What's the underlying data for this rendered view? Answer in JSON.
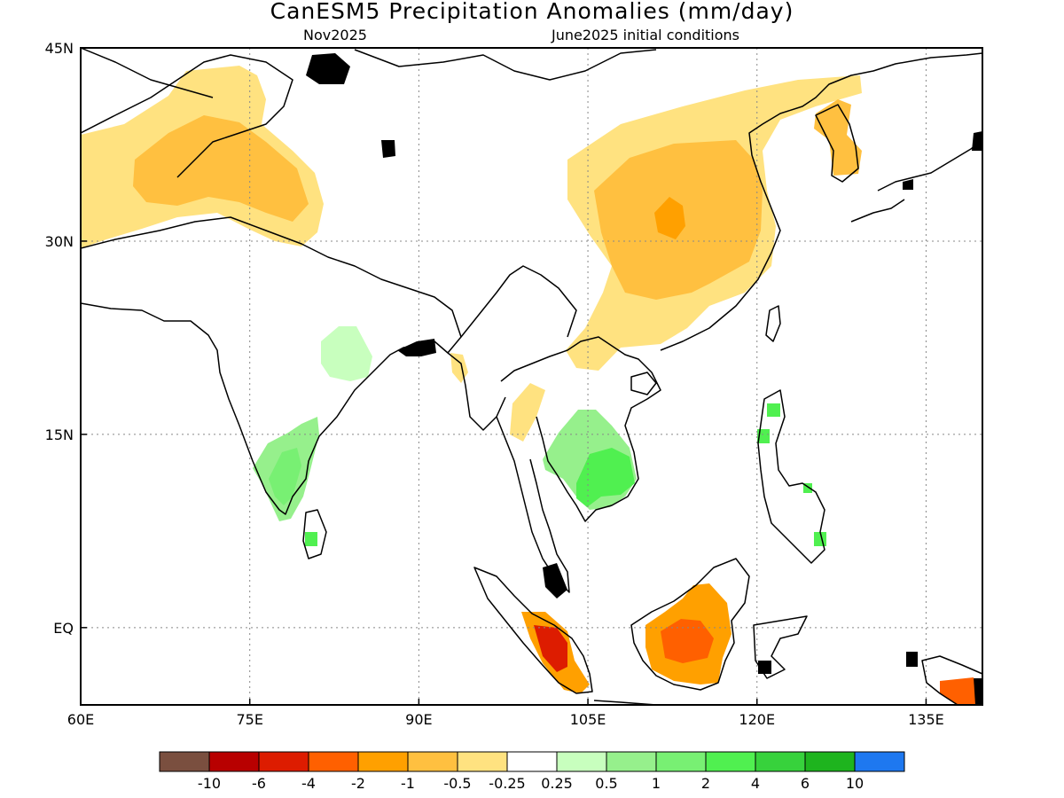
{
  "title": "CanESM5 Precipitation Anomalies (mm/day)",
  "subtitle_left": "Nov2025",
  "subtitle_right": "June2025 initial conditions",
  "map": {
    "lon_range": [
      60,
      140
    ],
    "lat_range": [
      -6,
      45
    ],
    "x_ticks": [
      {
        "value": 60,
        "label": "60E"
      },
      {
        "value": 75,
        "label": "75E"
      },
      {
        "value": 90,
        "label": "90E"
      },
      {
        "value": 105,
        "label": "105E"
      },
      {
        "value": 120,
        "label": "120E"
      },
      {
        "value": 135,
        "label": "135E"
      }
    ],
    "y_ticks": [
      {
        "value": 45,
        "label": "45N"
      },
      {
        "value": 30,
        "label": "30N"
      },
      {
        "value": 15,
        "label": "15N"
      },
      {
        "value": 0,
        "label": "EQ"
      }
    ],
    "grid": "dotted"
  },
  "colorbar": {
    "colors": [
      "#7a4f3f",
      "#b80000",
      "#dd1c00",
      "#ff6000",
      "#ffa000",
      "#ffc040",
      "#ffe280",
      "#ffffff",
      "#c8ffbe",
      "#96f08c",
      "#78f073",
      "#50f050",
      "#37d23c",
      "#1eb41e",
      "#1e78f0"
    ],
    "labels": [
      "-10",
      "-6",
      "-4",
      "-2",
      "-1",
      "-0.5",
      "-0.25",
      "0.25",
      "0.5",
      "1",
      "2",
      "4",
      "6",
      "10"
    ]
  },
  "anomaly_regions": [
    {
      "name": "northwest-india-pakistan-dry",
      "color": "#ffe280",
      "value": -0.5
    },
    {
      "name": "pakistan-core-dry",
      "color": "#ffc040",
      "value": -0.75
    },
    {
      "name": "central-east-china-dry",
      "color": "#ffe280",
      "value": -0.5
    },
    {
      "name": "central-east-china-core",
      "color": "#ffc040",
      "value": -0.75
    },
    {
      "name": "central-china-peak",
      "color": "#ffa000",
      "value": -1.5
    },
    {
      "name": "korea-dry",
      "color": "#ffc040",
      "value": -0.75
    },
    {
      "name": "myanmar-coast-dry",
      "color": "#ffe280",
      "value": -0.5
    },
    {
      "name": "thailand-dry",
      "color": "#ffe280",
      "value": -0.5
    },
    {
      "name": "bengal-wet",
      "color": "#c8ffbe",
      "value": 0.5
    },
    {
      "name": "southeast-india-wet",
      "color": "#96f08c",
      "value": 1
    },
    {
      "name": "southeast-india-core-wet",
      "color": "#78f073",
      "value": 1.5
    },
    {
      "name": "sri-lanka-wet",
      "color": "#50f050",
      "value": 3
    },
    {
      "name": "indochina-wet",
      "color": "#96f08c",
      "value": 1
    },
    {
      "name": "cambodia-vietnam-core-wet",
      "color": "#50f050",
      "value": 3
    },
    {
      "name": "philippines-wet",
      "color": "#50f050",
      "value": 3
    },
    {
      "name": "sumatra-dry-outer",
      "color": "#ffa000",
      "value": -1.5
    },
    {
      "name": "sumatra-dry-core",
      "color": "#dd1c00",
      "value": -5
    },
    {
      "name": "borneo-dry-outer",
      "color": "#ffa000",
      "value": -1.5
    },
    {
      "name": "borneo-dry-core",
      "color": "#ff6000",
      "value": -3
    },
    {
      "name": "new-guinea-dry",
      "color": "#ff6000",
      "value": -3
    }
  ]
}
